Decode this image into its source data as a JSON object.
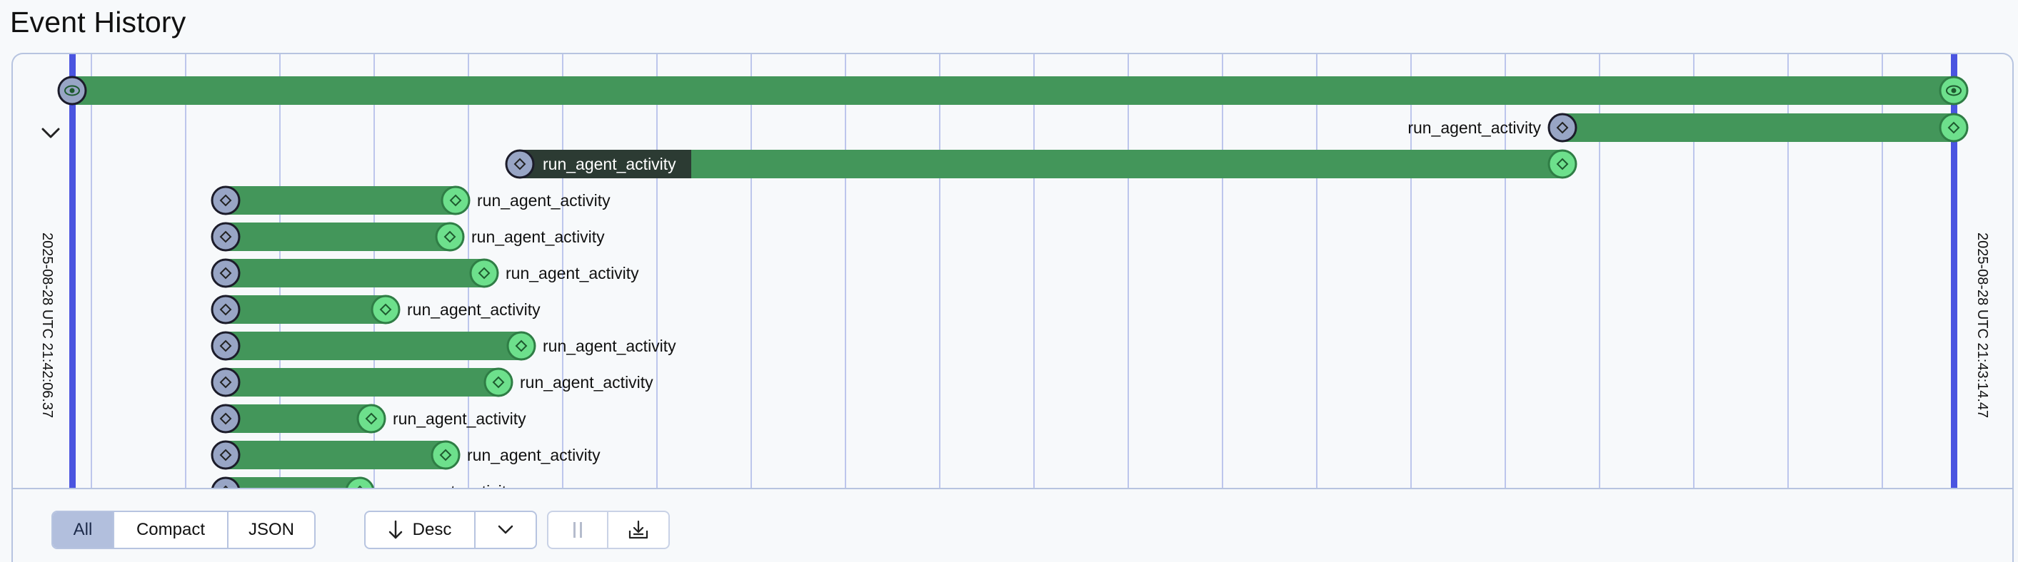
{
  "page": {
    "title": "Event History"
  },
  "timeline": {
    "start_label": "2025-08-28 UTC 21:42:06.37",
    "end_label": "2025-08-28 UTC 21:43:14.47",
    "rows": [
      {
        "label": "",
        "start_icon": "eye-icon",
        "end_icon": "eye-icon",
        "kind": "workflow"
      },
      {
        "label": "run_agent_activity",
        "kind": "activity"
      },
      {
        "label": "run_agent_activity",
        "kind": "activity"
      },
      {
        "label": "run_agent_activity",
        "kind": "activity"
      },
      {
        "label": "run_agent_activity",
        "kind": "activity"
      },
      {
        "label": "run_agent_activity",
        "kind": "activity"
      },
      {
        "label": "run_agent_activity",
        "kind": "activity"
      },
      {
        "label": "run_agent_activity",
        "kind": "activity"
      },
      {
        "label": "run_agent_activity",
        "kind": "activity"
      },
      {
        "label": "run_agent_activity",
        "kind": "activity"
      },
      {
        "label": "run_agent_activity",
        "kind": "activity"
      },
      {
        "label": "run_agent_activity",
        "kind": "activity"
      }
    ]
  },
  "toolbar": {
    "view_modes": [
      "All",
      "Compact",
      "JSON"
    ],
    "active_view": "All",
    "sort_label": "Desc",
    "pause_icon": "pause-icon",
    "download_icon": "download-icon"
  },
  "colors": {
    "bar_green": "#43965a",
    "bar_dark": "#2c3b33",
    "node_start": "#98a5c5",
    "node_end": "#6de08c",
    "edge_line": "#4b55e0",
    "grid_line": "#aab6e8"
  }
}
